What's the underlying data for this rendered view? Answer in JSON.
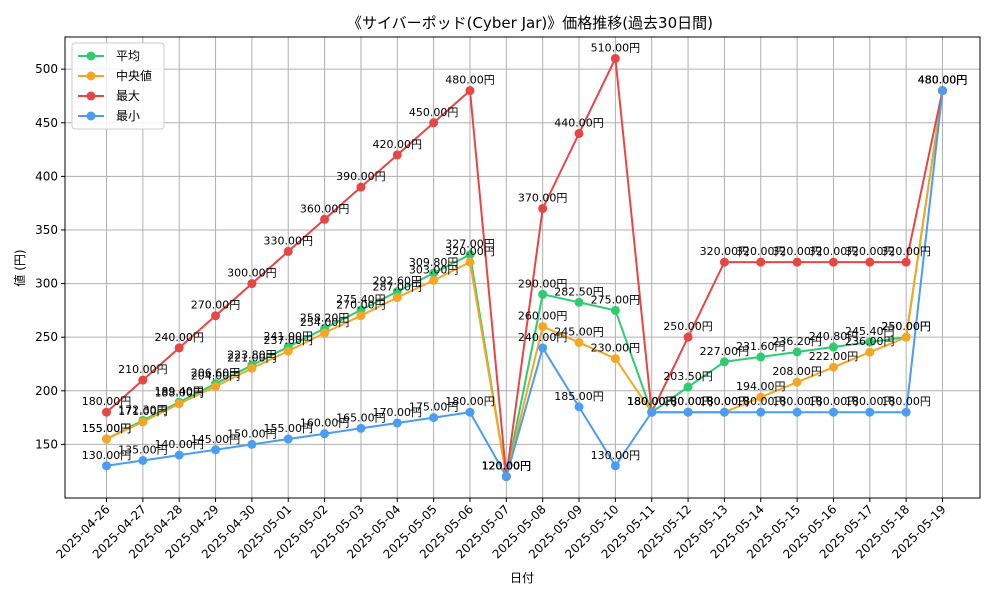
{
  "chart_data": {
    "type": "line",
    "title": "《サイバーポッド(Cyber Jar)》価格推移(過去30日間)",
    "xlabel": "日付",
    "ylabel": "値 (円)",
    "ylim": [
      100,
      530
    ],
    "yticks": [
      150,
      200,
      250,
      300,
      350,
      400,
      450,
      500
    ],
    "grid": true,
    "legend": "top-left",
    "label_suffix": "円",
    "categories": [
      "2025-04-26",
      "2025-04-27",
      "2025-04-28",
      "2025-04-29",
      "2025-04-30",
      "2025-05-01",
      "2025-05-02",
      "2025-05-03",
      "2025-05-04",
      "2025-05-05",
      "2025-05-06",
      "2025-05-07",
      "2025-05-08",
      "2025-05-09",
      "2025-05-10",
      "2025-05-11",
      "2025-05-12",
      "2025-05-13",
      "2025-05-14",
      "2025-05-15",
      "2025-05-16",
      "2025-05-17",
      "2025-05-18",
      "2025-05-19"
    ],
    "series": [
      {
        "name": "平均",
        "color": "#2ecc71",
        "values": [
          155.0,
          172.3,
          189.4,
          206.6,
          223.8,
          241.0,
          258.2,
          275.4,
          292.6,
          309.8,
          327.0,
          120.0,
          290.0,
          282.5,
          275.0,
          180.0,
          203.5,
          227.0,
          231.6,
          236.2,
          240.8,
          245.4,
          250.0,
          480.0
        ]
      },
      {
        "name": "中央値",
        "color": "#f5a623",
        "values": [
          155.0,
          171.0,
          188.0,
          204.0,
          221.0,
          237.0,
          254.0,
          270.0,
          287.0,
          303.0,
          320.0,
          120.0,
          260.0,
          245.0,
          230.0,
          180.0,
          180.0,
          180.0,
          194.0,
          208.0,
          222.0,
          236.0,
          250.0,
          480.0
        ]
      },
      {
        "name": "最大",
        "color": "#e84545",
        "values": [
          180.0,
          210.0,
          240.0,
          270.0,
          300.0,
          330.0,
          360.0,
          390.0,
          420.0,
          450.0,
          480.0,
          120.0,
          370.0,
          440.0,
          510.0,
          180.0,
          250.0,
          320.0,
          320.0,
          320.0,
          320.0,
          320.0,
          320.0,
          480.0
        ]
      },
      {
        "name": "最小",
        "color": "#4a9cf5",
        "values": [
          130.0,
          135.0,
          140.0,
          145.0,
          150.0,
          155.0,
          160.0,
          165.0,
          170.0,
          175.0,
          180.0,
          120.0,
          240.0,
          185.0,
          130.0,
          180.0,
          180.0,
          180.0,
          180.0,
          180.0,
          180.0,
          180.0,
          180.0,
          480.0
        ]
      }
    ]
  }
}
